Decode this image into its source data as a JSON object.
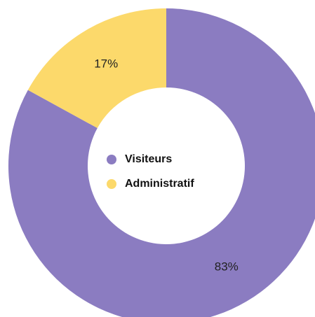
{
  "chart_data": {
    "type": "donut",
    "categories": [
      "Visiteurs",
      "Administratif"
    ],
    "values": [
      83,
      17
    ],
    "value_labels": [
      "83%",
      "17%"
    ],
    "colors": [
      "#8b7cc1",
      "#fcd96b"
    ],
    "legend": "center"
  }
}
